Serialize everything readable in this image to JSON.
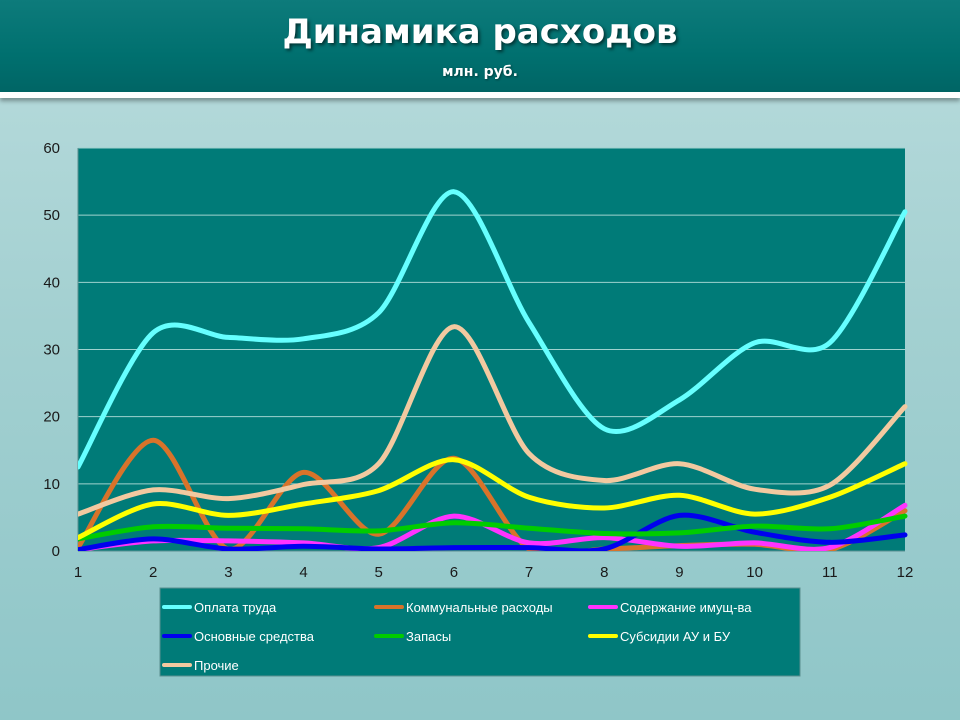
{
  "slide": {
    "title": "Динамика расходов",
    "subtitle": "млн. руб."
  },
  "chart_data": {
    "type": "line",
    "title": "Динамика расходов",
    "subtitle": "млн. руб.",
    "xlabel": "",
    "ylabel": "",
    "x": [
      1,
      2,
      3,
      4,
      5,
      6,
      7,
      8,
      9,
      10,
      11,
      12
    ],
    "xlim": [
      1,
      12
    ],
    "ylim": [
      0,
      60
    ],
    "yticks": [
      0,
      10,
      20,
      30,
      40,
      50,
      60
    ],
    "grid": true,
    "legend_position": "bottom",
    "plot_bg": "#007b78",
    "series": [
      {
        "name": "Оплата труда",
        "color": "#66ffff",
        "values": [
          12.5,
          32.5,
          31.8,
          31.6,
          35.5,
          53.5,
          34,
          18.2,
          22.5,
          31,
          31,
          50.5
        ]
      },
      {
        "name": "Коммунальные расходы",
        "color": "#d8732a",
        "values": [
          0.5,
          16.5,
          0.3,
          11.7,
          2.5,
          13.8,
          0.3,
          0.3,
          0.8,
          1,
          0.2,
          6
        ]
      },
      {
        "name": "Содержание имущ-ва",
        "color": "#ff33ff",
        "values": [
          0.2,
          1.5,
          1.5,
          1.2,
          0.5,
          5.2,
          1.2,
          2,
          0.7,
          1.2,
          0.5,
          6.8
        ]
      },
      {
        "name": "Основные средства",
        "color": "#0000ee",
        "values": [
          0.2,
          1.8,
          0.3,
          0.7,
          0.3,
          0.5,
          0.5,
          0.3,
          5.3,
          2.8,
          1.3,
          2.4
        ]
      },
      {
        "name": "Запасы",
        "color": "#00cc00",
        "values": [
          1.8,
          3.6,
          3.4,
          3.3,
          3,
          4.2,
          3.4,
          2.6,
          2.7,
          3.7,
          3.3,
          5.2
        ]
      },
      {
        "name": "Субсидии АУ и БУ",
        "color": "#ffff00",
        "values": [
          2,
          7,
          5.3,
          7,
          9,
          13.6,
          8,
          6.4,
          8.3,
          5.5,
          8,
          13
        ]
      },
      {
        "name": "Прочие",
        "color": "#f2c9a0",
        "values": [
          5.5,
          9.1,
          7.8,
          9.9,
          13,
          33.4,
          14.5,
          10.5,
          13,
          9.2,
          9.8,
          21.5
        ]
      }
    ]
  }
}
